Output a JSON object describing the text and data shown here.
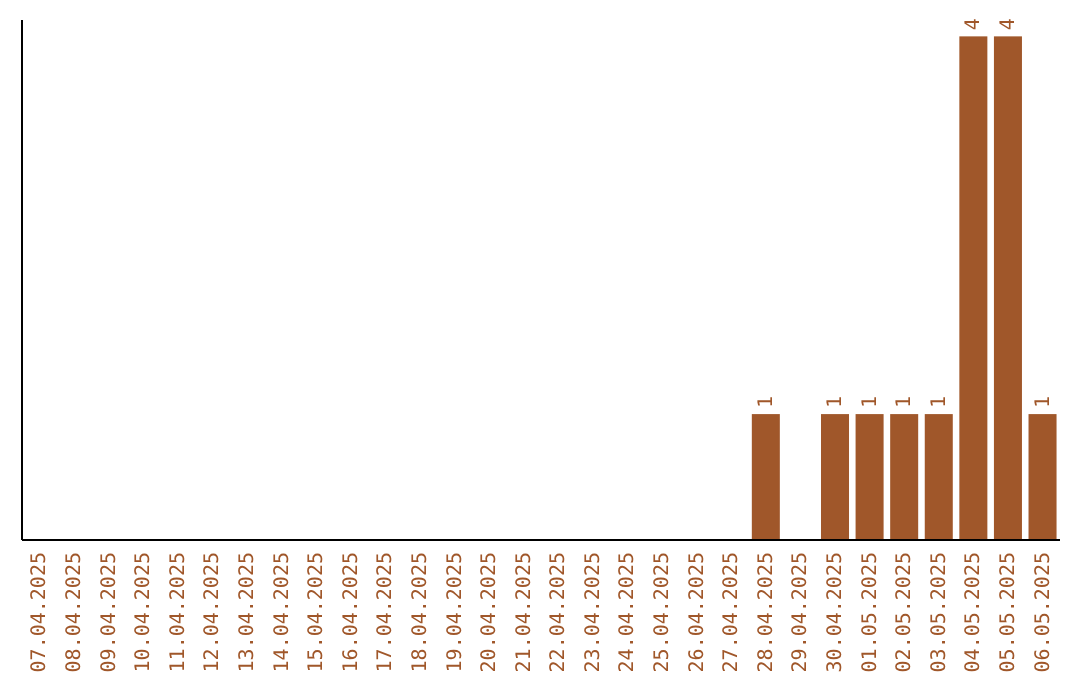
{
  "chart_data": {
    "type": "bar",
    "categories": [
      "07.04.2025",
      "08.04.2025",
      "09.04.2025",
      "10.04.2025",
      "11.04.2025",
      "12.04.2025",
      "13.04.2025",
      "14.04.2025",
      "15.04.2025",
      "16.04.2025",
      "17.04.2025",
      "18.04.2025",
      "19.04.2025",
      "20.04.2025",
      "21.04.2025",
      "22.04.2025",
      "23.04.2025",
      "24.04.2025",
      "25.04.2025",
      "26.04.2025",
      "27.04.2025",
      "28.04.2025",
      "29.04.2025",
      "30.04.2025",
      "01.05.2025",
      "02.05.2025",
      "03.05.2025",
      "04.05.2025",
      "05.05.2025",
      "06.05.2025"
    ],
    "values": [
      null,
      null,
      null,
      null,
      null,
      null,
      null,
      null,
      null,
      null,
      null,
      null,
      null,
      null,
      null,
      null,
      null,
      null,
      null,
      null,
      null,
      1,
      null,
      1,
      1,
      1,
      1,
      4,
      4,
      1
    ],
    "value_labels": [
      null,
      null,
      null,
      null,
      null,
      null,
      null,
      null,
      null,
      null,
      null,
      null,
      null,
      null,
      null,
      null,
      null,
      null,
      null,
      null,
      null,
      "1",
      null,
      "1",
      "1",
      "1",
      "1",
      "4",
      "4",
      "1"
    ],
    "color": "#a0572a",
    "ylim": [
      0,
      4.13
    ]
  }
}
